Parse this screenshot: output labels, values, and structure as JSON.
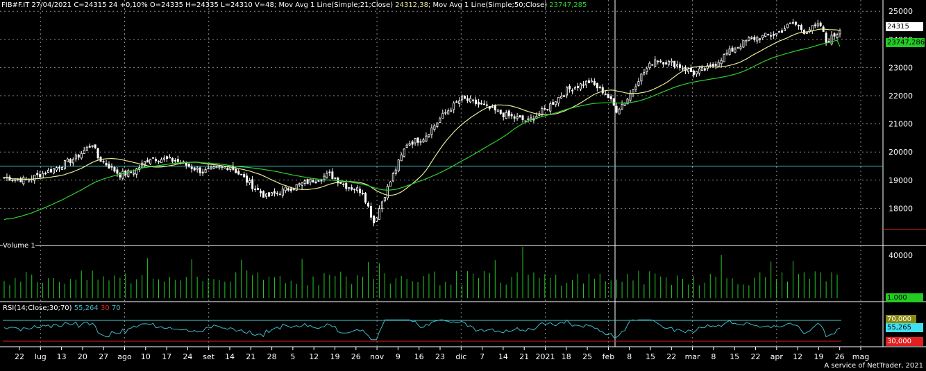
{
  "header": {
    "symbol_line": "FIB#F.IT 27/04/2021 C=24315 24 +0,10% O=24335 H=24335 L=24310 V=48;",
    "ma21_label": "Mov Avg 1 Line(Simple;21;Close)",
    "ma21_value": "24312,38",
    "ma50_label": "Mov Avg 1 Line(Simple;50;Close)",
    "ma50_value": "23747,285"
  },
  "volume_panel": {
    "label": "Volume 1",
    "tick": "40000",
    "last_value": "1.000"
  },
  "rsi_panel": {
    "label_prefix": "RSI(14;Close;30;70)",
    "value": "55,264",
    "low": "30",
    "high": "70",
    "box_high": "70,000",
    "box_value": "55,265",
    "box_low": "30,000"
  },
  "price_boxes": {
    "last": "24315",
    "ma50": "23747,286"
  },
  "credit": "A service of NetTrader, 2021",
  "colors": {
    "candle": "#ffffff",
    "ma21": "#e8e89a",
    "ma50": "#2ed02e",
    "volume": "#22cc22",
    "rsi": "#3fb8c8",
    "grid": "#8a8a8a",
    "hline": "#3fd0d0",
    "red": "#e02020"
  },
  "chart_data": {
    "type": "candlestick",
    "price_axis": {
      "ticks": [
        25000,
        24000,
        23000,
        22000,
        21000,
        20000,
        19000,
        18000
      ],
      "ylim": [
        17000,
        25400
      ]
    },
    "horizontal_line": 19500,
    "x_tick_labels": [
      "22",
      "lug",
      "13",
      "20",
      "27",
      "ago",
      "10",
      "17",
      "24",
      "set",
      "14",
      "21",
      "28",
      "5",
      "12",
      "19",
      "26",
      "nov",
      "9",
      "16",
      "23",
      "dic",
      "7",
      "14",
      "21",
      "2021",
      "18",
      "25",
      "feb",
      "8",
      "15",
      "22",
      "mar",
      "8",
      "15",
      "22",
      "apr",
      "12",
      "19",
      "26",
      "mag"
    ],
    "close_anchors": [
      [
        0,
        19100
      ],
      [
        8,
        19000
      ],
      [
        18,
        19400
      ],
      [
        26,
        19800
      ],
      [
        32,
        20300
      ],
      [
        34,
        19800
      ],
      [
        42,
        19200
      ],
      [
        47,
        19300
      ],
      [
        53,
        19800
      ],
      [
        62,
        19700
      ],
      [
        72,
        19300
      ],
      [
        82,
        19500
      ],
      [
        90,
        18800
      ],
      [
        95,
        18400
      ],
      [
        103,
        18700
      ],
      [
        112,
        19000
      ],
      [
        118,
        19200
      ],
      [
        124,
        18800
      ],
      [
        130,
        18600
      ],
      [
        134,
        17500
      ],
      [
        138,
        18500
      ],
      [
        142,
        19400
      ],
      [
        146,
        20300
      ],
      [
        152,
        20500
      ],
      [
        160,
        21400
      ],
      [
        166,
        21900
      ],
      [
        172,
        21700
      ],
      [
        182,
        21300
      ],
      [
        190,
        21100
      ],
      [
        196,
        21500
      ],
      [
        204,
        22200
      ],
      [
        212,
        22500
      ],
      [
        218,
        22100
      ],
      [
        222,
        21500
      ],
      [
        226,
        21900
      ],
      [
        230,
        22600
      ],
      [
        236,
        23300
      ],
      [
        244,
        23100
      ],
      [
        250,
        22800
      ],
      [
        256,
        23000
      ],
      [
        262,
        23500
      ],
      [
        270,
        24000
      ],
      [
        280,
        24200
      ],
      [
        286,
        24600
      ],
      [
        290,
        24300
      ],
      [
        296,
        24500
      ],
      [
        298,
        23900
      ],
      [
        303,
        24315
      ]
    ],
    "ma21_last": 24312.38,
    "ma50_last": 23747.285,
    "volume_axis": {
      "ticks": [
        40000
      ]
    },
    "rsi": {
      "levels": [
        30,
        70
      ],
      "last": 55.264
    }
  }
}
